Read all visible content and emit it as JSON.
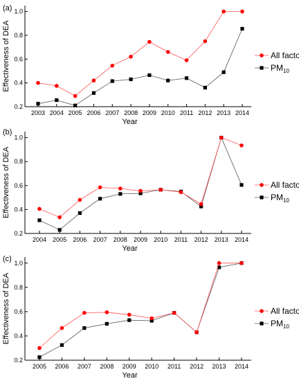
{
  "chart_data": [
    {
      "type": "line",
      "panel_label": "(a)",
      "xlabel": "Year",
      "ylabel": "Effectiveness of DEA",
      "x": [
        "2003",
        "2004",
        "2005",
        "2006",
        "2007",
        "2008",
        "2009",
        "2010",
        "2011",
        "2012",
        "2013",
        "2014"
      ],
      "ylim": [
        0.2,
        1.05
      ],
      "yticks": [
        "0.2",
        "0.4",
        "0.6",
        "0.8",
        "1.0"
      ],
      "legend_position": "right",
      "grid": false,
      "series": [
        {
          "name": "All factors",
          "color": "#ff0000",
          "marker": "circle",
          "values": [
            0.4,
            0.375,
            0.29,
            0.42,
            0.545,
            0.62,
            0.745,
            0.66,
            0.59,
            0.75,
            1.0,
            1.0
          ]
        },
        {
          "name": "PM",
          "name_sub": "10",
          "color": "#000000",
          "marker": "square",
          "values": [
            0.225,
            0.255,
            0.21,
            0.315,
            0.415,
            0.43,
            0.465,
            0.42,
            0.44,
            0.36,
            0.49,
            0.855
          ]
        }
      ]
    },
    {
      "type": "line",
      "panel_label": "(b)",
      "xlabel": "Year",
      "ylabel": "Effectiveness of DEA",
      "x": [
        "2004",
        "2005",
        "2006",
        "2007",
        "2008",
        "2009",
        "2010",
        "2011",
        "2012",
        "2013",
        "2014"
      ],
      "ylim": [
        0.2,
        1.05
      ],
      "yticks": [
        "0.2",
        "0.4",
        "0.6",
        "0.8",
        "1.0"
      ],
      "legend_position": "right",
      "grid": false,
      "series": [
        {
          "name": "All factors",
          "color": "#ff0000",
          "marker": "circle",
          "values": [
            0.405,
            0.335,
            0.48,
            0.585,
            0.575,
            0.555,
            0.565,
            0.545,
            0.445,
            1.0,
            0.935
          ]
        },
        {
          "name": "PM",
          "name_sub": "10",
          "color": "#000000",
          "marker": "square",
          "values": [
            0.31,
            0.23,
            0.37,
            0.49,
            0.53,
            0.535,
            0.565,
            0.55,
            0.425,
            1.0,
            0.605
          ]
        }
      ]
    },
    {
      "type": "line",
      "panel_label": "(c)",
      "xlabel": "Year",
      "ylabel": "Effectiveness of DEA",
      "x": [
        "2005",
        "2006",
        "2007",
        "2008",
        "2009",
        "2010",
        "2011",
        "2012",
        "2013",
        "2014"
      ],
      "ylim": [
        0.2,
        1.05
      ],
      "yticks": [
        "0.2",
        "0.4",
        "0.6",
        "0.8",
        "1.0"
      ],
      "legend_position": "right",
      "grid": false,
      "series": [
        {
          "name": "All factors",
          "color": "#ff0000",
          "marker": "circle",
          "values": [
            0.3,
            0.465,
            0.59,
            0.595,
            0.575,
            0.545,
            0.59,
            0.43,
            1.0,
            1.0
          ]
        },
        {
          "name": "PM",
          "name_sub": "10",
          "color": "#000000",
          "marker": "square",
          "values": [
            0.225,
            0.325,
            0.465,
            0.5,
            0.53,
            0.525,
            0.59,
            0.43,
            0.965,
            1.0
          ]
        }
      ]
    }
  ]
}
